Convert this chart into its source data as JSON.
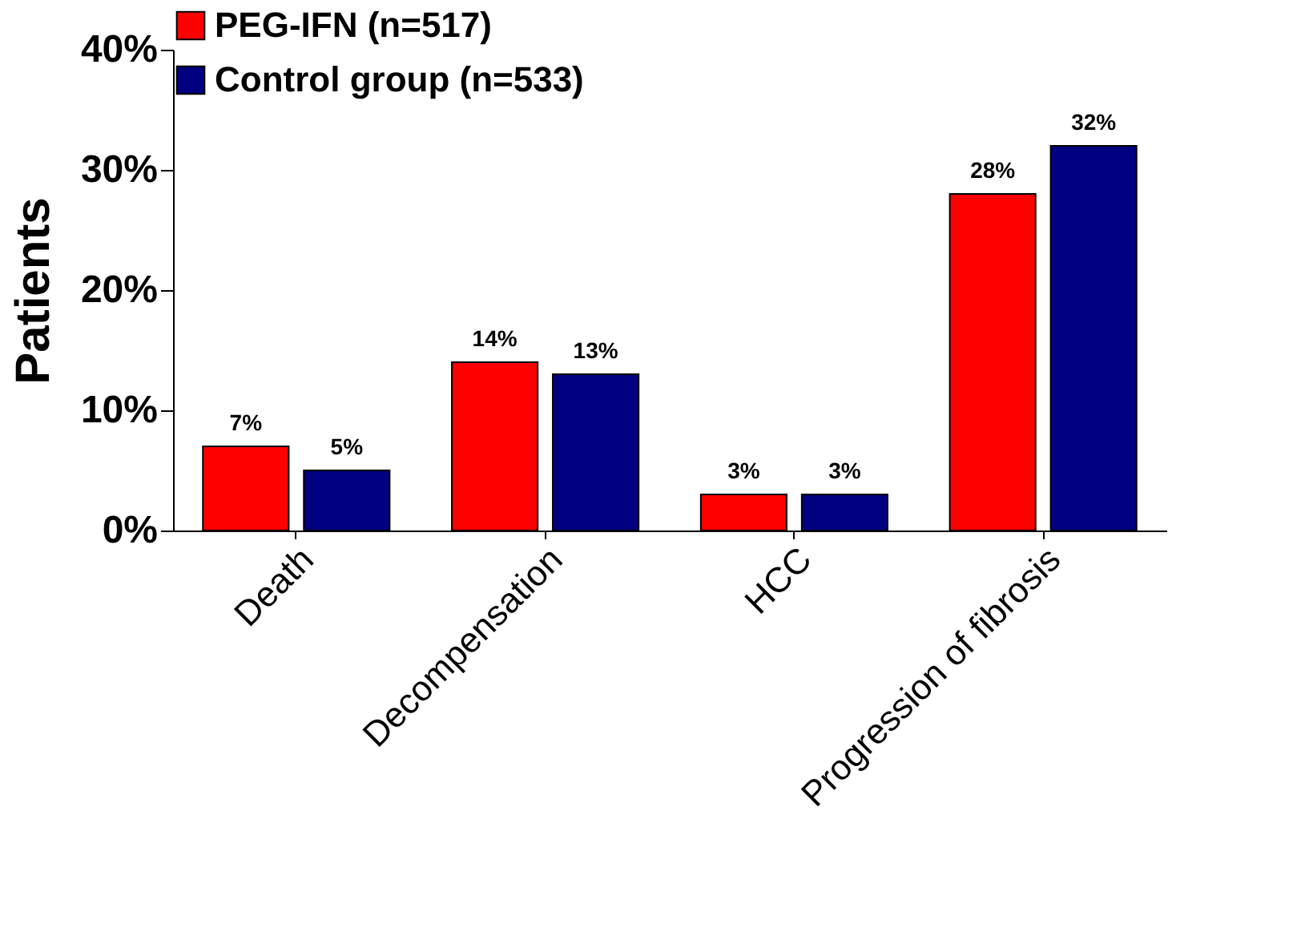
{
  "chart_data": {
    "type": "bar",
    "ylabel": "Patients",
    "categories": [
      "Death",
      "Decompensation",
      "HCC",
      "Progression of fibrosis"
    ],
    "series": [
      {
        "name": "PEG-IFN (n=517)",
        "color": "#ff0000",
        "values": [
          7,
          14,
          3,
          28
        ],
        "value_labels": [
          "7%",
          "14%",
          "3%",
          "28%"
        ]
      },
      {
        "name": "Control group (n=533)",
        "color": "#000080",
        "values": [
          5,
          13,
          3,
          32
        ],
        "value_labels": [
          "5%",
          "13%",
          "3%",
          "32%"
        ]
      }
    ],
    "ylim": [
      0,
      40
    ],
    "yticks": [
      {
        "value": 0,
        "label": "0%"
      },
      {
        "value": 10,
        "label": "10%"
      },
      {
        "value": 20,
        "label": "20%"
      },
      {
        "value": 30,
        "label": "30%"
      },
      {
        "value": 40,
        "label": "40%"
      }
    ],
    "grid": false,
    "legend": "top"
  }
}
